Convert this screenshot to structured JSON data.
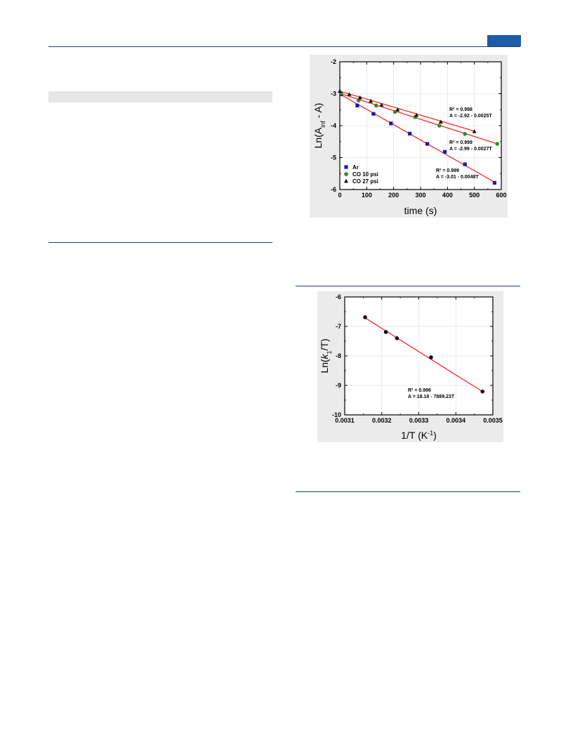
{
  "page": {
    "accent_color": "#1f5ba8",
    "rule_color": "#1f3f7a"
  },
  "chart_data": [
    {
      "type": "scatter",
      "xlabel": "time (s)",
      "ylabel_parts": [
        "Ln(A",
        "inf",
        " - A)"
      ],
      "xlim": [
        0,
        600
      ],
      "ylim": [
        -6,
        -2
      ],
      "xticks": [
        0,
        100,
        200,
        300,
        400,
        500,
        600
      ],
      "yticks": [
        -2,
        -3,
        -4,
        -5,
        -6
      ],
      "grid": true,
      "legend_position": "bottom-left",
      "series": [
        {
          "name": "Ar",
          "marker": "square",
          "color": "#1a1aa6",
          "x": [
            5,
            65,
            125,
            190,
            260,
            325,
            390,
            465,
            575
          ],
          "y": [
            -3.02,
            -3.37,
            -3.63,
            -3.93,
            -4.25,
            -4.57,
            -4.82,
            -5.21,
            -5.79
          ],
          "fit": {
            "intercept": -3.01,
            "slope": -0.0048,
            "x_range": [
              0,
              580
            ]
          },
          "annotation": {
            "r2": "R² = 0.999",
            "eq": "A = -3.01 - 0.0048T"
          }
        },
        {
          "name": "CO 10 psi",
          "marker": "circle",
          "color": "#2e8b2e",
          "x": [
            5,
            70,
            135,
            205,
            280,
            370,
            465,
            585
          ],
          "y": [
            -2.98,
            -3.21,
            -3.37,
            -3.57,
            -3.73,
            -4.0,
            -4.26,
            -4.57
          ],
          "fit": {
            "intercept": -2.99,
            "slope": -0.0027,
            "x_range": [
              0,
              590
            ]
          },
          "annotation": {
            "r2": "R² = 0.999",
            "eq": "A = -2.99 - 0.0027T"
          }
        },
        {
          "name": "CO 27 psi",
          "marker": "triangle",
          "color": "#111111",
          "x": [
            0,
            35,
            75,
            115,
            155,
            215,
            285,
            375,
            500
          ],
          "y": [
            -2.92,
            -3.02,
            -3.12,
            -3.23,
            -3.35,
            -3.5,
            -3.67,
            -3.88,
            -4.18
          ],
          "fit": {
            "intercept": -2.92,
            "slope": -0.0025,
            "x_range": [
              0,
              500
            ]
          },
          "annotation": {
            "r2": "R² = 0.998",
            "eq": "A = -2.92 - 0.0025T"
          }
        }
      ]
    },
    {
      "type": "scatter",
      "xlabel_parts": [
        "1/T (K",
        "-1",
        ")"
      ],
      "ylabel_parts": [
        "Ln(",
        "k",
        "1",
        "/T)"
      ],
      "xlim": [
        0.0031,
        0.0035
      ],
      "ylim": [
        -10,
        -6
      ],
      "xticks": [
        0.0031,
        0.0032,
        0.0033,
        0.0034,
        0.0035
      ],
      "yticks": [
        -6,
        -7,
        -8,
        -9,
        -10
      ],
      "grid": true,
      "series": [
        {
          "marker": "circle",
          "color": "#111111",
          "x": [
            0.003155,
            0.003211,
            0.003241,
            0.003333,
            0.003472
          ],
          "y": [
            -6.69,
            -7.19,
            -7.4,
            -8.05,
            -9.21
          ],
          "fit": {
            "intercept": 18.18,
            "slope": -7889.23,
            "x_range": [
              0.003155,
              0.003472
            ]
          },
          "annotation": {
            "r2": "R² = 0.996",
            "eq": "A = 18.18 - 7889.23T"
          }
        }
      ]
    }
  ]
}
